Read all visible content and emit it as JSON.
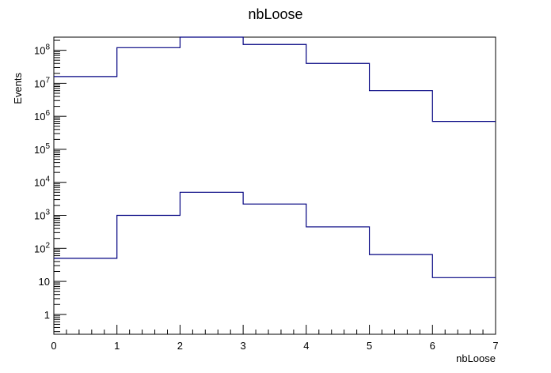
{
  "chart_data": {
    "type": "histogram",
    "title": "nbLoose",
    "xlabel": "nbLoose",
    "ylabel": "Events",
    "xlim": [
      0,
      7
    ],
    "ylim": [
      0.25,
      250000000
    ],
    "yscale": "log",
    "x_ticks": [
      "0",
      "1",
      "2",
      "3",
      "4",
      "5",
      "6",
      "7"
    ],
    "y_ticks": [
      {
        "value": 1,
        "base": "1",
        "exp": ""
      },
      {
        "value": 10,
        "base": "10",
        "exp": ""
      },
      {
        "value": 100,
        "base": "10",
        "exp": "2"
      },
      {
        "value": 1000,
        "base": "10",
        "exp": "3"
      },
      {
        "value": 10000,
        "base": "10",
        "exp": "4"
      },
      {
        "value": 100000,
        "base": "10",
        "exp": "5"
      },
      {
        "value": 1000000,
        "base": "10",
        "exp": "6"
      },
      {
        "value": 10000000,
        "base": "10",
        "exp": "7"
      },
      {
        "value": 100000000,
        "base": "10",
        "exp": "8"
      }
    ],
    "bin_edges": [
      0,
      1,
      2,
      3,
      4,
      5,
      6,
      7
    ],
    "series": [
      {
        "values": [
          16000000,
          120000000,
          250000000,
          150000000,
          40000000,
          6000000,
          700000
        ],
        "color": "#000080"
      },
      {
        "values": [
          50,
          1000,
          5000,
          2200,
          450,
          65,
          13
        ],
        "color": "#000080"
      }
    ]
  }
}
